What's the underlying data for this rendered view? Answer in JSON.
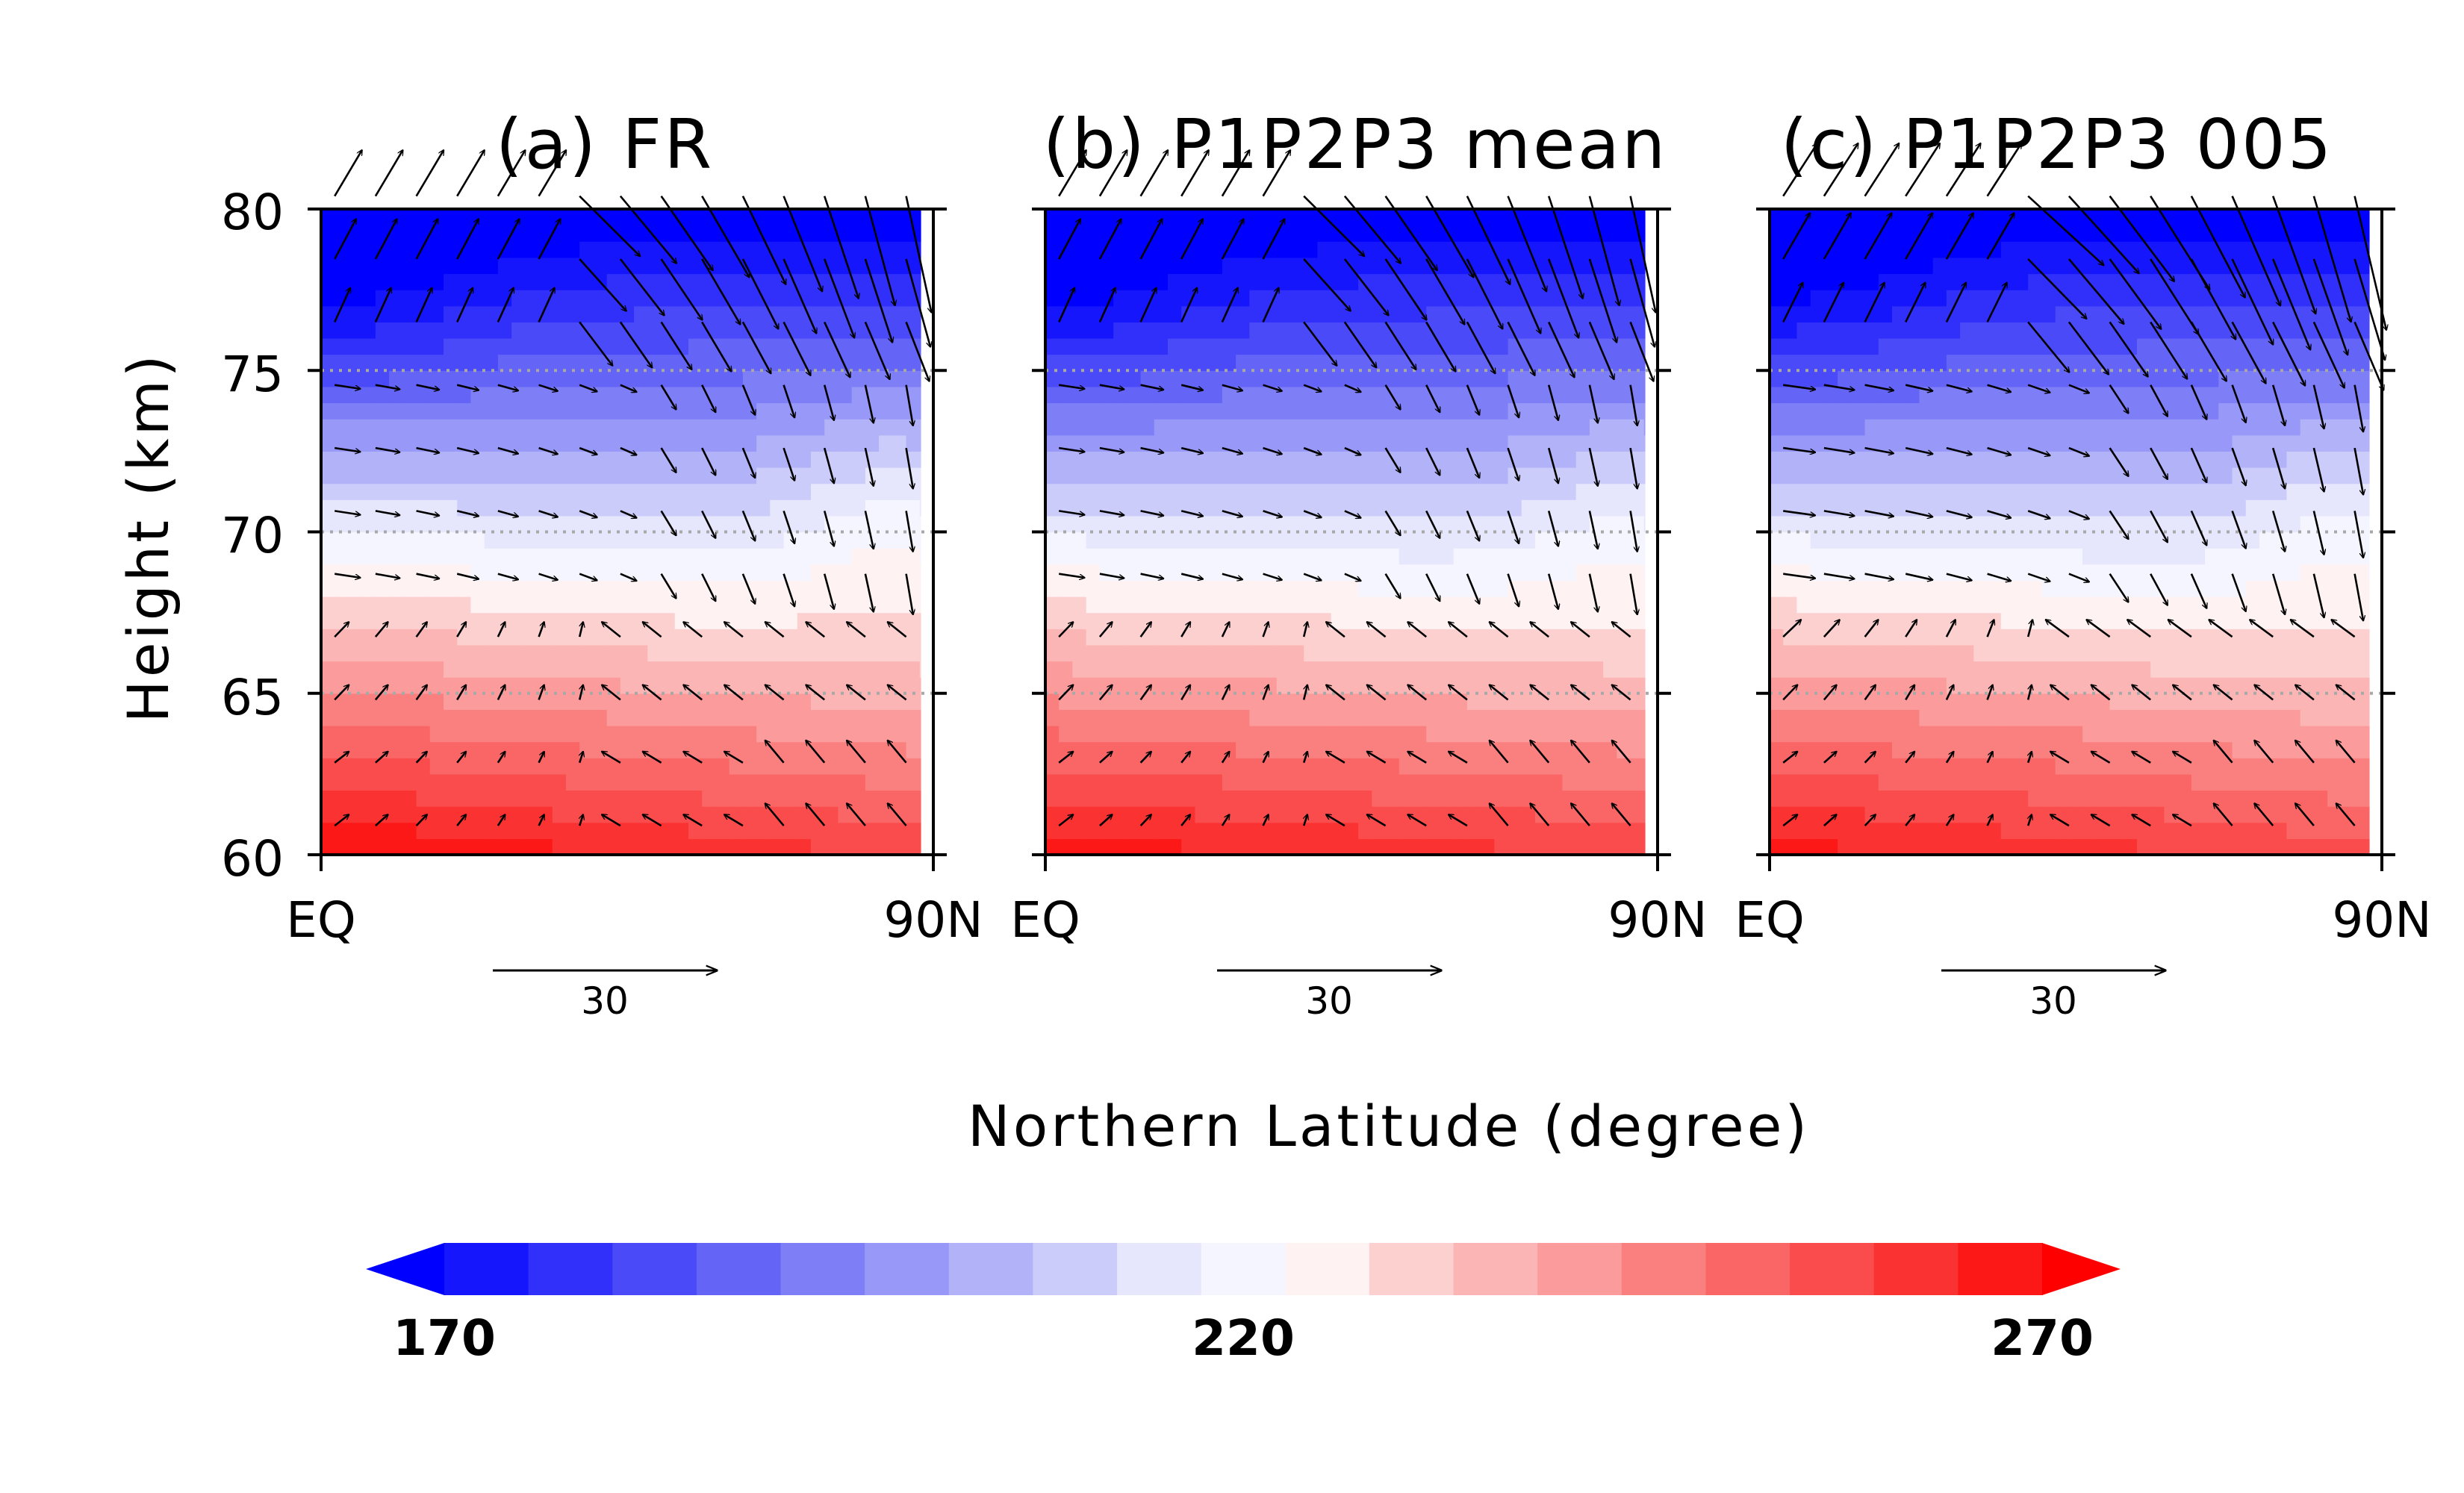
{
  "chart_data": [
    {
      "type": "heatmap",
      "title": "(a) FR",
      "x_ticks": [
        "EQ",
        "90N"
      ],
      "x_range": [
        0,
        90
      ],
      "y_ticks": [
        "60",
        "65",
        "70",
        "75",
        "80"
      ],
      "ylim": [
        60,
        80
      ],
      "ylabel": "Height (km)",
      "variant": "FR",
      "reference_vector": {
        "length": 30,
        "label": "30"
      },
      "dotted_lines_km": [
        65,
        70,
        75
      ]
    },
    {
      "type": "heatmap",
      "title": "(b) P1P2P3 mean",
      "x_ticks": [
        "EQ",
        "90N"
      ],
      "x_range": [
        0,
        90
      ],
      "y_ticks": [
        "60",
        "65",
        "70",
        "75",
        "80"
      ],
      "ylim": [
        60,
        80
      ],
      "variant": "mean",
      "reference_vector": {
        "length": 30,
        "label": "30"
      },
      "dotted_lines_km": [
        65,
        70,
        75
      ]
    },
    {
      "type": "heatmap",
      "title": "(c) P1P2P3 005",
      "x_ticks": [
        "EQ",
        "90N"
      ],
      "x_range": [
        0,
        90
      ],
      "y_ticks": [
        "60",
        "65",
        "70",
        "75",
        "80"
      ],
      "ylim": [
        60,
        80
      ],
      "variant": "005",
      "reference_vector": {
        "length": 30,
        "label": "30"
      },
      "dotted_lines_km": [
        65,
        70,
        75
      ]
    }
  ],
  "xlabel": "Northern Latitude (degree)",
  "colorbar": {
    "min": 170,
    "max": 270,
    "step": 5,
    "labels": [
      "170",
      "220",
      "270"
    ],
    "colors": [
      "#0000ff",
      "#1616fc",
      "#3030fa",
      "#4a4af8",
      "#6464f7",
      "#7e7ef7",
      "#9898f8",
      "#b2b2f9",
      "#ccccfb",
      "#e6e6fd",
      "#f5f5ff",
      "#fff2f2",
      "#fdd0d0",
      "#fcb5b5",
      "#fb9b9b",
      "#fa8080",
      "#fa6666",
      "#fa4c4c",
      "#fb3232",
      "#fd1818",
      "#ff0000"
    ]
  }
}
